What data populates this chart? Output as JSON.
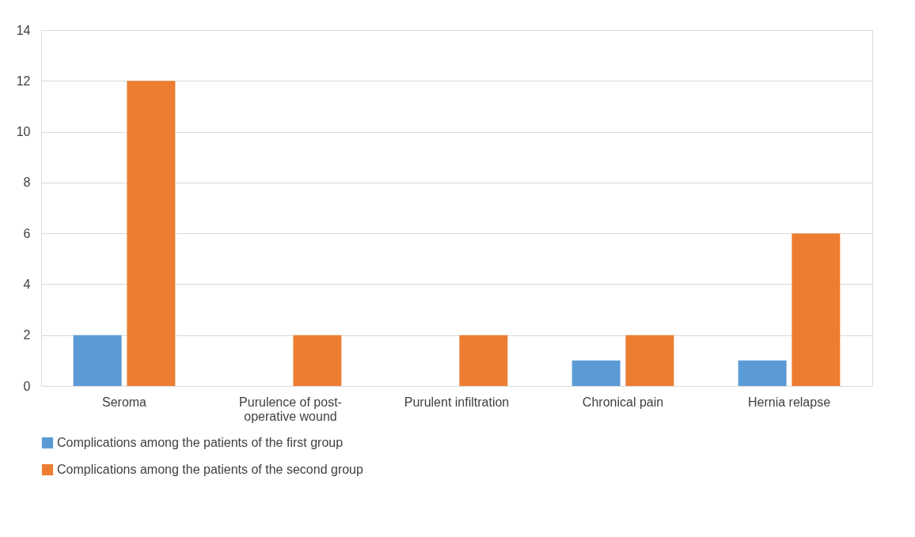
{
  "chart_data": {
    "type": "bar",
    "categories": [
      "Seroma",
      "Purulence of post-operative wound",
      "Purulent infiltration",
      "Chronical pain",
      "Hernia relapse"
    ],
    "series": [
      {
        "name": "Complications among the patients of the first group",
        "color": "#5b9bd5",
        "values": [
          2,
          0,
          0,
          1,
          1
        ]
      },
      {
        "name": "Complications among the patients of the second group",
        "color": "#ed7d31",
        "values": [
          12,
          2,
          2,
          2,
          6
        ]
      }
    ],
    "ylim": [
      0,
      14
    ],
    "yticks": [
      0,
      2,
      4,
      6,
      8,
      10,
      12,
      14
    ],
    "grid": "y",
    "legend": "bottom"
  }
}
